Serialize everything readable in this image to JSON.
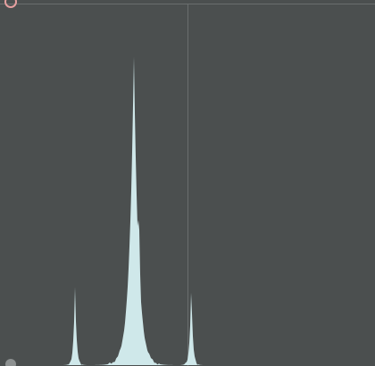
{
  "panel": {
    "background": "#4b4f4f",
    "border_color": "#6a6e6e",
    "marker_color": "#6a6e6e"
  },
  "histogram": {
    "fill_color": "#cfe8ea",
    "peaks": [
      {
        "center": 0.2,
        "height": 0.23,
        "width": 0.004
      },
      {
        "center": 0.357,
        "height": 0.92,
        "width": 0.012
      },
      {
        "center": 0.37,
        "height": 0.5,
        "width": 0.006
      },
      {
        "center": 0.51,
        "height": 0.24,
        "width": 0.004
      }
    ]
  },
  "markers": {
    "top_left_handle": {
      "icon": "circle-handle-icon",
      "color": "#e6a0a0"
    },
    "bottom_left_handle": {
      "icon": "circle-handle-icon",
      "color": "#8d9191"
    }
  }
}
